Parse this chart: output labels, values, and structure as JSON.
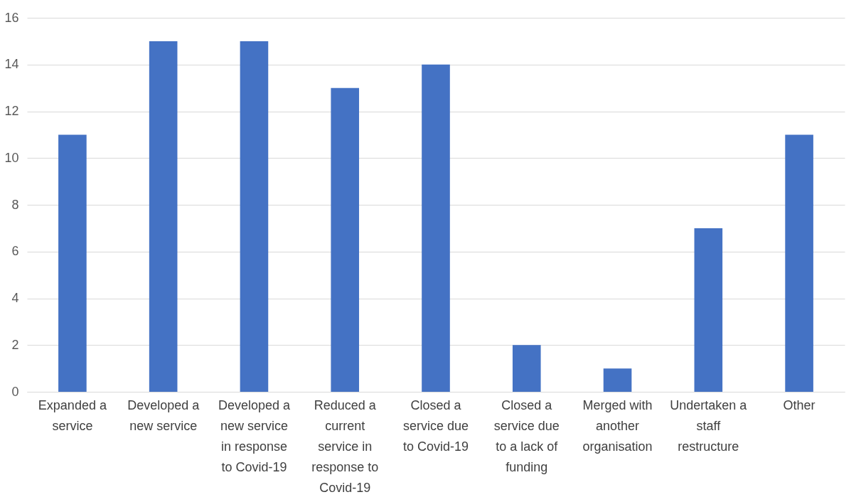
{
  "chart_data": {
    "type": "bar",
    "categories": [
      "Expanded a service",
      "Developed a new service",
      "Developed a new service in response to Covid-19",
      "Reduced a current service in response to Covid-19",
      "Closed a service due to Covid-19",
      "Closed a service due to a lack of funding",
      "Merged with another organisation",
      "Undertaken a staff restructure",
      "Other"
    ],
    "values": [
      11,
      15,
      15,
      13,
      14,
      2,
      1,
      7,
      11
    ],
    "color": "#4472c4",
    "ylim": [
      0,
      16
    ],
    "yticks": [
      0,
      2,
      4,
      6,
      8,
      10,
      12,
      14,
      16
    ],
    "grid": "y"
  }
}
